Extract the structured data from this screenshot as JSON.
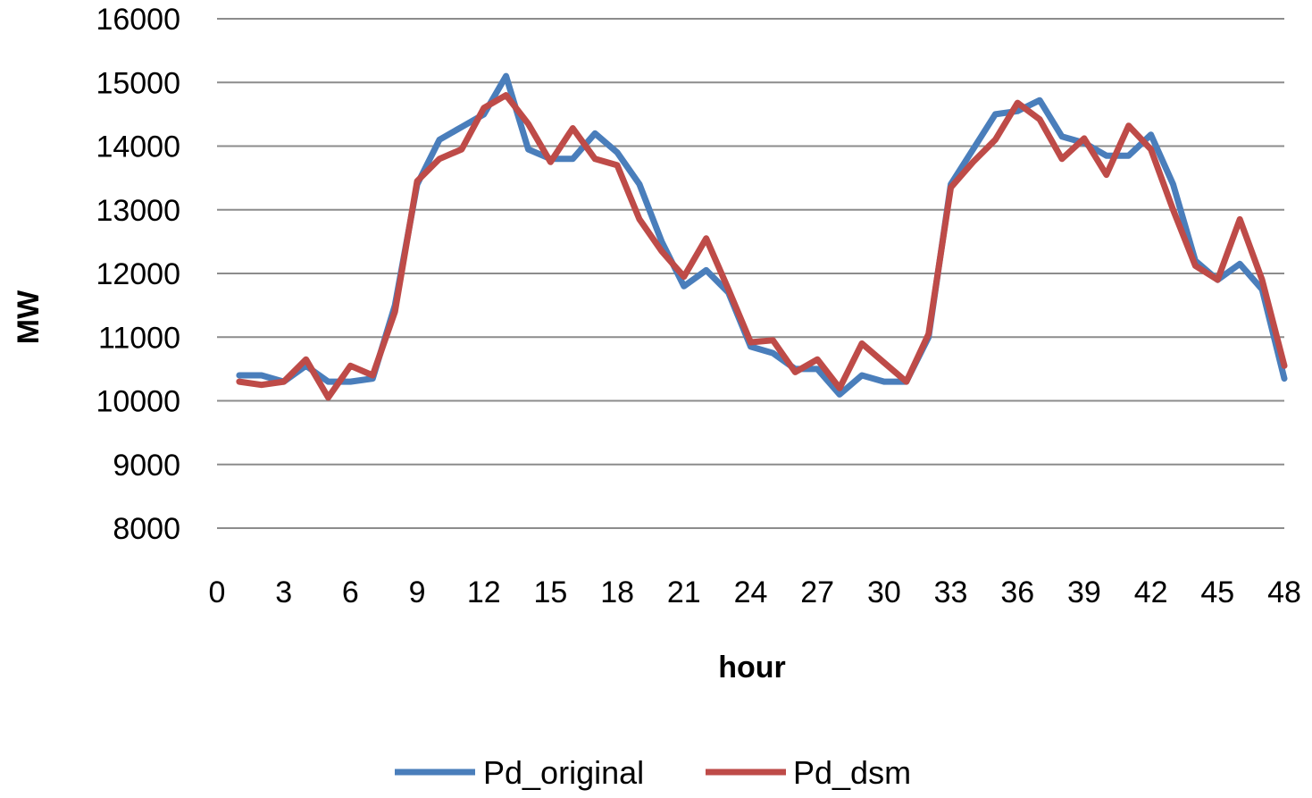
{
  "chart_data": {
    "type": "line",
    "title": "",
    "xlabel": "hour",
    "ylabel": "MW",
    "xlim": [
      0,
      48
    ],
    "ylim": [
      8000,
      16000
    ],
    "x_ticks": [
      0,
      3,
      6,
      9,
      12,
      15,
      18,
      21,
      24,
      27,
      30,
      33,
      36,
      39,
      42,
      45,
      48
    ],
    "y_ticks": [
      8000,
      9000,
      10000,
      11000,
      12000,
      13000,
      14000,
      15000,
      16000
    ],
    "grid": "horizontal",
    "legend_position": "bottom",
    "x": [
      1,
      2,
      3,
      4,
      5,
      6,
      7,
      8,
      9,
      10,
      11,
      12,
      13,
      14,
      15,
      16,
      17,
      18,
      19,
      20,
      21,
      22,
      23,
      24,
      25,
      26,
      27,
      28,
      29,
      30,
      31,
      32,
      33,
      34,
      35,
      36,
      37,
      38,
      39,
      40,
      41,
      42,
      43,
      44,
      45,
      46,
      47,
      48
    ],
    "series": [
      {
        "name": "Pd_original",
        "color": "#4a7ebb",
        "values": [
          10400,
          10400,
          10300,
          10550,
          10300,
          10300,
          10350,
          11500,
          13400,
          14100,
          14300,
          14500,
          15100,
          13950,
          13800,
          13800,
          14200,
          13900,
          13400,
          12500,
          11800,
          12050,
          11700,
          10850,
          10750,
          10500,
          10500,
          10100,
          10400,
          10300,
          10300,
          11000,
          13400,
          13950,
          14500,
          14550,
          14720,
          14150,
          14050,
          13850,
          13850,
          14180,
          13400,
          12200,
          11900,
          12150,
          11750,
          10350
        ]
      },
      {
        "name": "Pd_dsm",
        "color": "#be4b48",
        "values": [
          10300,
          10250,
          10300,
          10650,
          10050,
          10550,
          10400,
          11400,
          13450,
          13800,
          13950,
          14600,
          14800,
          14350,
          13750,
          14280,
          13800,
          13700,
          12850,
          12350,
          11950,
          12550,
          11750,
          10920,
          10950,
          10450,
          10650,
          10200,
          10900,
          10600,
          10300,
          11050,
          13350,
          13750,
          14100,
          14680,
          14420,
          13800,
          14120,
          13550,
          14320,
          13950,
          13000,
          12120,
          11900,
          12850,
          11900,
          10550
        ]
      }
    ]
  }
}
